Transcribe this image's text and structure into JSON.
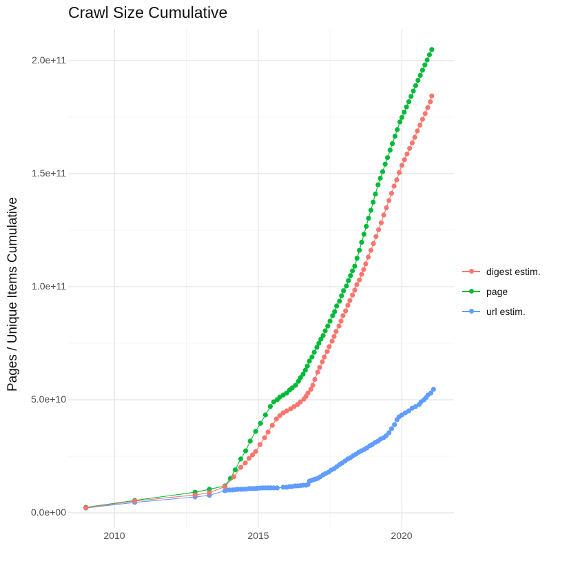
{
  "title": "Crawl Size Cumulative",
  "axes": {
    "y": {
      "label": "Pages / Unique Items Cumulative",
      "ticks": [
        {
          "label": "0.0e+00",
          "value": 0
        },
        {
          "label": "5.0e+10",
          "value": 50
        },
        {
          "label": "1.0e+11",
          "value": 100
        },
        {
          "label": "1.5e+11",
          "value": 150
        },
        {
          "label": "2.0e+11",
          "value": 200
        }
      ],
      "minor": [
        25,
        75,
        125,
        175
      ]
    },
    "x": {
      "ticks": [
        {
          "label": "2010",
          "value": 2010
        },
        {
          "label": "2015",
          "value": 2015
        },
        {
          "label": "2020",
          "value": 2020
        }
      ],
      "minor": [
        2012.5,
        2017.5
      ]
    }
  },
  "legend": {
    "items": [
      {
        "label": "digest estim.",
        "color": "#F8766D",
        "series": "digest"
      },
      {
        "label": "page",
        "color": "#00BA38",
        "series": "page"
      },
      {
        "label": "url estim.",
        "color": "#619CFF",
        "series": "url"
      }
    ]
  },
  "colors": {
    "digest": "#F8766D",
    "page": "#00BA38",
    "url": "#619CFF",
    "grid_major": "#e4e4e4",
    "grid_minor": "#f1f1f1",
    "tick_text": "#4d4d4d"
  },
  "chart_data": {
    "type": "scatter",
    "title": "Crawl Size Cumulative",
    "xlabel": "",
    "ylabel": "Pages / Unique Items Cumulative",
    "value_unit": "items, listed in billions (1e9); axis shows 0.0e+00 to 2.0e+11",
    "x_range": [
      2008.5,
      2021.8
    ],
    "ylim_e9": [
      0,
      213
    ],
    "grid": true,
    "legend_position": "right",
    "series": [
      {
        "name": "url estim.",
        "color": "#619CFF",
        "points": [
          [
            2009.0,
            2.1
          ],
          [
            2010.7,
            4.6
          ],
          [
            2012.8,
            7.0
          ],
          [
            2013.3,
            7.7
          ],
          [
            2013.84,
            9.8
          ],
          [
            2013.91,
            10.1
          ],
          [
            2014.0,
            10.1
          ],
          [
            2014.1,
            10.1
          ],
          [
            2014.2,
            10.2
          ],
          [
            2014.29,
            10.4
          ],
          [
            2014.39,
            10.4
          ],
          [
            2014.49,
            10.4
          ],
          [
            2014.58,
            10.5
          ],
          [
            2014.68,
            10.7
          ],
          [
            2014.77,
            10.7
          ],
          [
            2014.87,
            10.7
          ],
          [
            2014.96,
            10.8
          ],
          [
            2015.06,
            10.9
          ],
          [
            2015.15,
            11.0
          ],
          [
            2015.25,
            11.0
          ],
          [
            2015.35,
            11.0
          ],
          [
            2015.44,
            11.0
          ],
          [
            2015.54,
            11.0
          ],
          [
            2015.66,
            11.0
          ],
          [
            2015.87,
            11.3
          ],
          [
            2015.99,
            11.3
          ],
          [
            2016.09,
            11.6
          ],
          [
            2016.18,
            11.6
          ],
          [
            2016.28,
            11.9
          ],
          [
            2016.37,
            11.9
          ],
          [
            2016.47,
            12.0
          ],
          [
            2016.56,
            12.2
          ],
          [
            2016.66,
            12.2
          ],
          [
            2016.73,
            12.5
          ],
          [
            2016.78,
            14.0
          ],
          [
            2016.85,
            14.3
          ],
          [
            2016.92,
            14.6
          ],
          [
            2016.99,
            14.9
          ],
          [
            2017.07,
            15.2
          ],
          [
            2017.16,
            15.9
          ],
          [
            2017.26,
            16.8
          ],
          [
            2017.35,
            17.4
          ],
          [
            2017.45,
            18.0
          ],
          [
            2017.54,
            18.9
          ],
          [
            2017.64,
            19.5
          ],
          [
            2017.73,
            20.4
          ],
          [
            2017.83,
            21.3
          ],
          [
            2017.92,
            22.0
          ],
          [
            2018.02,
            22.9
          ],
          [
            2018.12,
            23.8
          ],
          [
            2018.21,
            24.4
          ],
          [
            2018.31,
            25.3
          ],
          [
            2018.4,
            25.9
          ],
          [
            2018.5,
            26.8
          ],
          [
            2018.59,
            27.4
          ],
          [
            2018.69,
            28.0
          ],
          [
            2018.78,
            28.7
          ],
          [
            2018.88,
            29.6
          ],
          [
            2018.97,
            30.2
          ],
          [
            2019.07,
            31.1
          ],
          [
            2019.17,
            31.7
          ],
          [
            2019.26,
            32.6
          ],
          [
            2019.36,
            33.2
          ],
          [
            2019.45,
            34.1
          ],
          [
            2019.55,
            35.4
          ],
          [
            2019.64,
            37.2
          ],
          [
            2019.74,
            39.0
          ],
          [
            2019.83,
            41.2
          ],
          [
            2019.9,
            42.4
          ],
          [
            2020.0,
            43.3
          ],
          [
            2020.12,
            44.2
          ],
          [
            2020.24,
            45.1
          ],
          [
            2020.36,
            46.3
          ],
          [
            2020.48,
            47.0
          ],
          [
            2020.6,
            47.9
          ],
          [
            2020.67,
            49.1
          ],
          [
            2020.77,
            50.0
          ],
          [
            2020.84,
            50.9
          ],
          [
            2020.91,
            52.1
          ],
          [
            2021.01,
            53.0
          ],
          [
            2021.1,
            54.6
          ]
        ]
      },
      {
        "name": "page",
        "color": "#00BA38",
        "points": [
          [
            2009.0,
            2.4
          ],
          [
            2010.7,
            5.5
          ],
          [
            2012.8,
            9.1
          ],
          [
            2013.3,
            10.4
          ],
          [
            2013.84,
            11.9
          ],
          [
            2014.03,
            15.2
          ],
          [
            2014.2,
            19.0
          ],
          [
            2014.39,
            23.8
          ],
          [
            2014.56,
            27.4
          ],
          [
            2014.72,
            31.7
          ],
          [
            2014.91,
            36.0
          ],
          [
            2015.08,
            39.6
          ],
          [
            2015.25,
            43.3
          ],
          [
            2015.42,
            47.0
          ],
          [
            2015.54,
            49.1
          ],
          [
            2015.66,
            50.0
          ],
          [
            2015.75,
            51.2
          ],
          [
            2015.87,
            52.1
          ],
          [
            2015.99,
            53.0
          ],
          [
            2016.09,
            54.3
          ],
          [
            2016.18,
            55.2
          ],
          [
            2016.3,
            56.4
          ],
          [
            2016.4,
            58.2
          ],
          [
            2016.47,
            59.8
          ],
          [
            2016.56,
            61.3
          ],
          [
            2016.64,
            63.1
          ],
          [
            2016.71,
            64.9
          ],
          [
            2016.78,
            67.1
          ],
          [
            2016.87,
            68.9
          ],
          [
            2016.95,
            71.0
          ],
          [
            2017.04,
            73.2
          ],
          [
            2017.11,
            75.0
          ],
          [
            2017.18,
            76.8
          ],
          [
            2017.26,
            78.4
          ],
          [
            2017.33,
            80.5
          ],
          [
            2017.42,
            82.6
          ],
          [
            2017.5,
            84.8
          ],
          [
            2017.59,
            87.2
          ],
          [
            2017.66,
            89.0
          ],
          [
            2017.73,
            91.5
          ],
          [
            2017.83,
            93.6
          ],
          [
            2017.9,
            96.0
          ],
          [
            2017.97,
            98.2
          ],
          [
            2018.07,
            100.3
          ],
          [
            2018.14,
            102.7
          ],
          [
            2018.21,
            104.9
          ],
          [
            2018.28,
            107.0
          ],
          [
            2018.36,
            109.1
          ],
          [
            2018.44,
            112.6
          ],
          [
            2018.52,
            116.1
          ],
          [
            2018.6,
            119.7
          ],
          [
            2018.68,
            123.2
          ],
          [
            2018.76,
            126.7
          ],
          [
            2018.84,
            130.3
          ],
          [
            2018.92,
            133.8
          ],
          [
            2019.0,
            137.4
          ],
          [
            2019.08,
            141.0
          ],
          [
            2019.17,
            145.1
          ],
          [
            2019.25,
            148.0
          ],
          [
            2019.33,
            150.9
          ],
          [
            2019.42,
            154.2
          ],
          [
            2019.5,
            157.1
          ],
          [
            2019.59,
            160.4
          ],
          [
            2019.67,
            163.3
          ],
          [
            2019.76,
            166.6
          ],
          [
            2019.84,
            169.5
          ],
          [
            2019.93,
            172.9
          ],
          [
            2020.0,
            174.9
          ],
          [
            2020.08,
            177.2
          ],
          [
            2020.16,
            179.5
          ],
          [
            2020.24,
            181.8
          ],
          [
            2020.32,
            184.2
          ],
          [
            2020.4,
            186.6
          ],
          [
            2020.48,
            189.0
          ],
          [
            2020.56,
            191.3
          ],
          [
            2020.64,
            193.5
          ],
          [
            2020.72,
            195.8
          ],
          [
            2020.8,
            198.1
          ],
          [
            2020.88,
            200.3
          ],
          [
            2020.96,
            202.6
          ],
          [
            2021.04,
            204.9
          ]
        ]
      },
      {
        "name": "digest estim.",
        "color": "#F8766D",
        "points": [
          [
            2009.0,
            2.2
          ],
          [
            2010.7,
            5.2
          ],
          [
            2012.8,
            7.9
          ],
          [
            2013.3,
            8.9
          ],
          [
            2013.84,
            11.6
          ],
          [
            2014.15,
            15.9
          ],
          [
            2014.39,
            20.1
          ],
          [
            2014.55,
            22.0
          ],
          [
            2014.68,
            24.1
          ],
          [
            2014.8,
            25.6
          ],
          [
            2014.91,
            27.1
          ],
          [
            2015.06,
            30.2
          ],
          [
            2015.22,
            33.2
          ],
          [
            2015.34,
            35.7
          ],
          [
            2015.49,
            38.7
          ],
          [
            2015.63,
            41.5
          ],
          [
            2015.75,
            43.0
          ],
          [
            2015.87,
            44.2
          ],
          [
            2015.99,
            45.1
          ],
          [
            2016.13,
            46.0
          ],
          [
            2016.25,
            47.0
          ],
          [
            2016.37,
            47.9
          ],
          [
            2016.47,
            49.1
          ],
          [
            2016.59,
            50.3
          ],
          [
            2016.66,
            51.5
          ],
          [
            2016.73,
            53.0
          ],
          [
            2016.83,
            54.6
          ],
          [
            2016.9,
            56.4
          ],
          [
            2016.97,
            59.0
          ],
          [
            2017.07,
            62.2
          ],
          [
            2017.14,
            64.3
          ],
          [
            2017.23,
            66.8
          ],
          [
            2017.3,
            68.9
          ],
          [
            2017.4,
            71.3
          ],
          [
            2017.47,
            73.5
          ],
          [
            2017.57,
            75.9
          ],
          [
            2017.64,
            78.0
          ],
          [
            2017.71,
            80.2
          ],
          [
            2017.81,
            82.6
          ],
          [
            2017.88,
            84.8
          ],
          [
            2017.95,
            87.2
          ],
          [
            2018.04,
            89.3
          ],
          [
            2018.12,
            91.8
          ],
          [
            2018.19,
            93.9
          ],
          [
            2018.28,
            96.3
          ],
          [
            2018.36,
            98.5
          ],
          [
            2018.43,
            100.9
          ],
          [
            2018.52,
            103.0
          ],
          [
            2018.6,
            105.5
          ],
          [
            2018.67,
            107.6
          ],
          [
            2018.74,
            110.1
          ],
          [
            2018.83,
            113.1
          ],
          [
            2018.92,
            116.1
          ],
          [
            2019.01,
            119.1
          ],
          [
            2019.1,
            122.2
          ],
          [
            2019.19,
            125.2
          ],
          [
            2019.28,
            128.3
          ],
          [
            2019.37,
            131.7
          ],
          [
            2019.46,
            134.9
          ],
          [
            2019.55,
            138.1
          ],
          [
            2019.64,
            141.3
          ],
          [
            2019.73,
            144.5
          ],
          [
            2019.82,
            147.3
          ],
          [
            2019.91,
            150.5
          ],
          [
            2020.0,
            153.7
          ],
          [
            2020.09,
            156.2
          ],
          [
            2020.18,
            158.7
          ],
          [
            2020.27,
            161.2
          ],
          [
            2020.36,
            163.6
          ],
          [
            2020.45,
            166.1
          ],
          [
            2020.54,
            168.9
          ],
          [
            2020.63,
            171.5
          ],
          [
            2020.72,
            174.1
          ],
          [
            2020.81,
            176.6
          ],
          [
            2020.9,
            179.2
          ],
          [
            2020.99,
            181.8
          ],
          [
            2021.04,
            184.4
          ]
        ]
      }
    ]
  }
}
